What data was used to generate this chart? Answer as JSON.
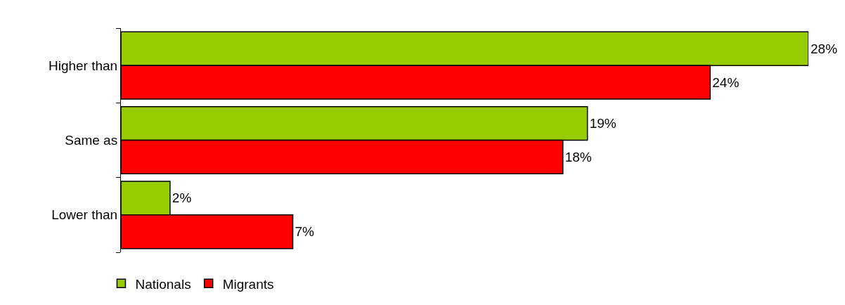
{
  "chart_data": {
    "type": "bar",
    "orientation": "horizontal",
    "categories": [
      "Higher than",
      "Same as",
      "Lower than"
    ],
    "series": [
      {
        "name": "Nationals",
        "color": "#99cc00",
        "values": [
          28,
          19,
          2
        ],
        "value_labels": [
          "28%",
          "19%",
          "2%"
        ]
      },
      {
        "name": "Migrants",
        "color": "#ff0000",
        "values": [
          24,
          18,
          7
        ],
        "value_labels": [
          "24%",
          "18%",
          "7%"
        ]
      }
    ],
    "legend": "bottom left"
  }
}
